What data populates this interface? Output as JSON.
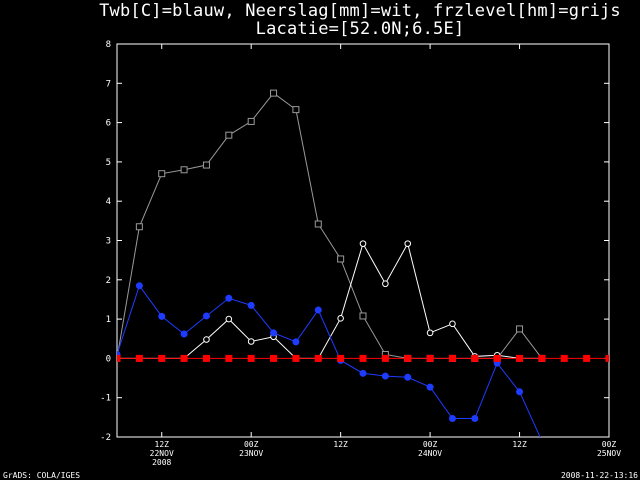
{
  "chart_data": {
    "type": "line",
    "title": "Twb[C]=blauw, Neerslag[mm]=wit, frzlevel[hm]=grijs",
    "subtitle": "Lacatie=[52.0N;6.5E]",
    "ylim": [
      -2,
      8
    ],
    "yticks": [
      -2,
      -1,
      0,
      1,
      2,
      3,
      4,
      5,
      6,
      7,
      8
    ],
    "xlim": [
      0,
      22
    ],
    "xticks": [
      {
        "x": 2,
        "label": "12Z",
        "sublabels": [
          "22NOV",
          "2008"
        ]
      },
      {
        "x": 6,
        "label": "00Z",
        "sublabels": [
          "23NOV"
        ]
      },
      {
        "x": 10,
        "label": "12Z",
        "sublabels": []
      },
      {
        "x": 14,
        "label": "00Z",
        "sublabels": [
          "24NOV"
        ]
      },
      {
        "x": 18,
        "label": "12Z",
        "sublabels": []
      },
      {
        "x": 22,
        "label": "00Z",
        "sublabels": [
          "25NOV"
        ]
      }
    ],
    "series": [
      {
        "key": "freezing",
        "color": "#9a9a9a",
        "marker": "square-open",
        "x": [
          0,
          1,
          2,
          3,
          4,
          5,
          6,
          7,
          8,
          9,
          10,
          11,
          12,
          13,
          14,
          15,
          16,
          17,
          18,
          19
        ],
        "y": [
          0,
          3.35,
          4.7,
          4.8,
          4.92,
          5.68,
          6.03,
          6.75,
          6.33,
          3.42,
          2.53,
          1.08,
          0.1,
          0,
          0,
          0,
          0,
          0,
          0.75,
          0
        ]
      },
      {
        "key": "precip",
        "color": "#ffffff",
        "marker": "circle-open",
        "x": [
          0,
          1,
          2,
          3,
          4,
          5,
          6,
          7,
          8,
          9,
          10,
          11,
          12,
          13,
          14,
          15,
          16,
          17,
          18,
          19
        ],
        "y": [
          0,
          0,
          0,
          0,
          0.48,
          1.0,
          0.43,
          0.55,
          0,
          0,
          1.02,
          2.92,
          1.9,
          2.92,
          0.65,
          0.88,
          0.05,
          0.08,
          0,
          0
        ]
      },
      {
        "key": "twb",
        "color": "#1e3cff",
        "marker": "circle-filled",
        "x": [
          -1,
          0,
          1,
          2,
          3,
          4,
          5,
          6,
          7,
          8,
          9,
          10,
          11,
          12,
          13,
          14,
          15,
          16,
          17,
          18,
          19
        ],
        "y": [
          -1.35,
          0.1,
          1.85,
          1.07,
          0.62,
          1.08,
          1.53,
          1.35,
          0.65,
          0.42,
          1.23,
          -0.05,
          -0.38,
          -0.45,
          -0.48,
          -0.73,
          -1.53,
          -1.53,
          -0.12,
          -0.85,
          -2.1
        ]
      },
      {
        "key": "zero",
        "color": "#ff0000",
        "marker": "square-filled",
        "x": [
          -1,
          0,
          1,
          2,
          3,
          4,
          5,
          6,
          7,
          8,
          9,
          10,
          11,
          12,
          13,
          14,
          15,
          16,
          17,
          18,
          19,
          20,
          21,
          22
        ],
        "y": [
          0,
          0,
          0,
          0,
          0,
          0,
          0,
          0,
          0,
          0,
          0,
          0,
          0,
          0,
          0,
          0,
          0,
          0,
          0,
          0,
          0,
          0,
          0,
          0
        ]
      }
    ]
  },
  "footer": {
    "left": "GrADS: COLA/IGES",
    "right": "2008-11-22-13:16"
  }
}
